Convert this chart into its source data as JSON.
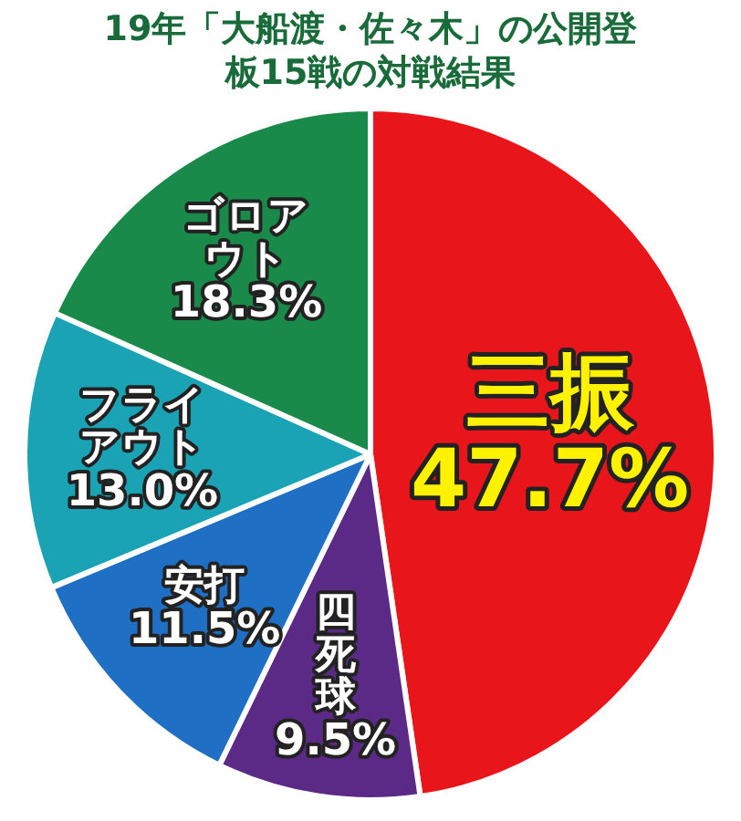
{
  "chart_data": {
    "type": "pie",
    "title": "19年「大船渡・佐々木」の公開登板15戦の対戦結果",
    "categories": [
      "三振",
      "四死球",
      "安打",
      "フライアウト",
      "ゴロアウト"
    ],
    "values": [
      47.7,
      9.5,
      11.5,
      13.0,
      18.3
    ],
    "value_labels": [
      "47.7%",
      "9.5%",
      "11.5%",
      "13.0%",
      "18.3%"
    ],
    "colors": [
      "#e8161b",
      "#5b2a86",
      "#1f6fc4",
      "#1aa3b5",
      "#1a8a4a"
    ],
    "legend": false
  }
}
